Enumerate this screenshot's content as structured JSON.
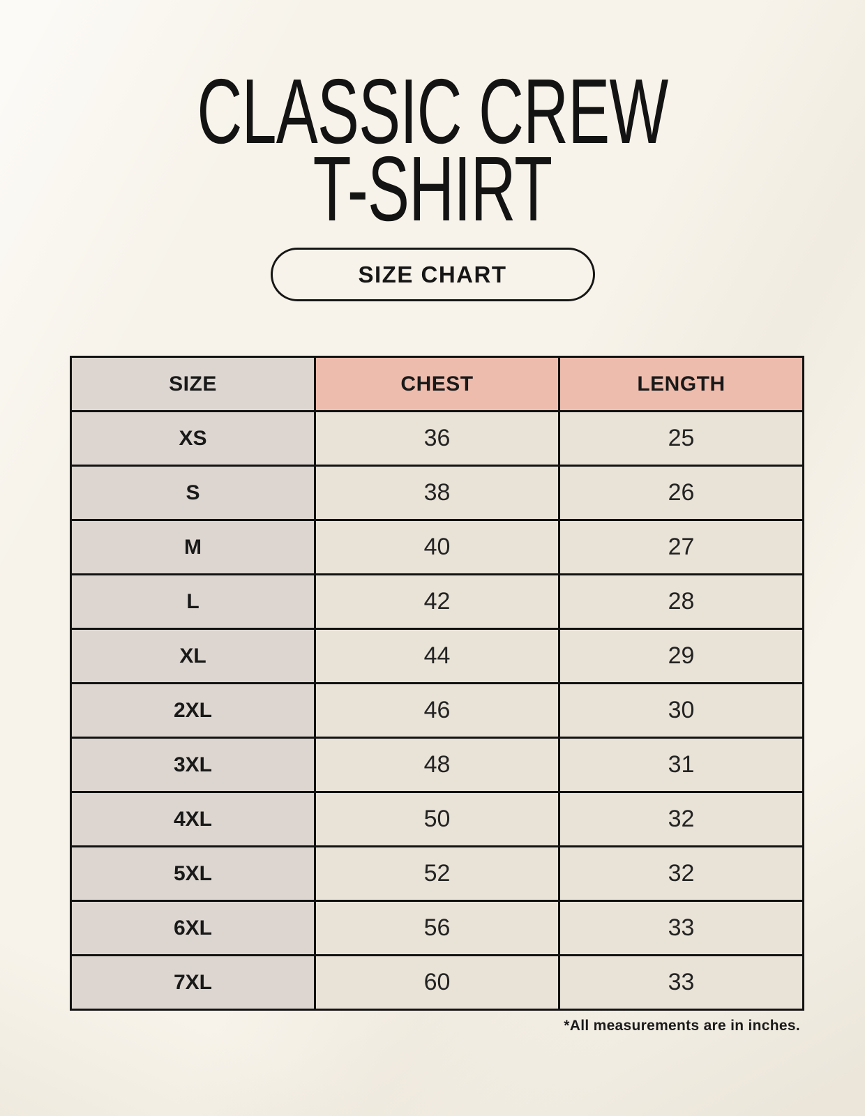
{
  "header": {
    "title_line1": "CLASSIC CREW",
    "title_line2": "T-SHIRT",
    "size_chart_button": "SIZE CHART"
  },
  "footnote": "*All measurements are in inches.",
  "colors": {
    "page_bg": "#f7f3ea",
    "table_header_size_bg": "#ddd6d0",
    "table_header_measure_bg": "#eebcad",
    "size_column_bg": "#ddd6d0",
    "data_cell_bg": "#e9e2d7",
    "table_border": "#121212",
    "text": "#1b1b1b"
  },
  "chart_data": {
    "type": "table",
    "title": "CLASSIC CREW T-SHIRT SIZE CHART",
    "units": "inches",
    "columns": [
      "SIZE",
      "CHEST",
      "LENGTH"
    ],
    "rows": [
      [
        "XS",
        "36",
        "25"
      ],
      [
        "S",
        "38",
        "26"
      ],
      [
        "M",
        "40",
        "27"
      ],
      [
        "L",
        "42",
        "28"
      ],
      [
        "XL",
        "44",
        "29"
      ],
      [
        "2XL",
        "46",
        "30"
      ],
      [
        "3XL",
        "48",
        "31"
      ],
      [
        "4XL",
        "50",
        "32"
      ],
      [
        "5XL",
        "52",
        "32"
      ],
      [
        "6XL",
        "56",
        "33"
      ],
      [
        "7XL",
        "60",
        "33"
      ]
    ]
  }
}
